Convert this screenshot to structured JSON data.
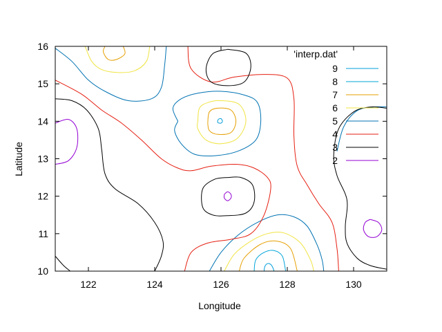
{
  "chart_data": {
    "type": "contour",
    "title": "",
    "xlabel": "Longitude",
    "ylabel": "Latitude",
    "xlim": [
      121,
      131
    ],
    "ylim": [
      10,
      16
    ],
    "xticks": [
      "122",
      "124",
      "126",
      "128",
      "130"
    ],
    "yticks": [
      "10",
      "11",
      "12",
      "13",
      "14",
      "15",
      "16"
    ],
    "legend_title": "'interp.dat'",
    "legend_position": "top-right",
    "grid": false,
    "series": [
      {
        "name": "9",
        "level": 9,
        "color": "#009dd9",
        "paths": [
          [
            [
              127.3,
              10.0
            ],
            [
              127.32,
              10.12
            ],
            [
              127.4,
              10.2
            ],
            [
              127.5,
              10.18
            ],
            [
              127.56,
              10.1
            ],
            [
              127.6,
              10.0
            ]
          ],
          [
            [
              126.05,
              14.0
            ],
            [
              126.0,
              13.95
            ],
            [
              125.9,
              13.97
            ],
            [
              125.92,
              14.05
            ],
            [
              126.0,
              14.07
            ],
            [
              126.05,
              14.0
            ]
          ]
        ]
      },
      {
        "name": "8",
        "level": 8,
        "color": "#00a4d8",
        "paths": [
          [
            [
              127.0,
              10.0
            ],
            [
              127.05,
              10.3
            ],
            [
              127.3,
              10.5
            ],
            [
              127.6,
              10.55
            ],
            [
              127.85,
              10.4
            ],
            [
              127.95,
              10.0
            ]
          ]
        ]
      },
      {
        "name": "7",
        "level": 7,
        "color": "#e69f00",
        "paths": [
          [
            [
              126.55,
              10.0
            ],
            [
              126.7,
              10.35
            ],
            [
              127.2,
              10.72
            ],
            [
              127.7,
              10.8
            ],
            [
              128.1,
              10.6
            ],
            [
              128.3,
              10.0
            ]
          ],
          [
            [
              125.6,
              13.95
            ],
            [
              125.65,
              14.25
            ],
            [
              125.9,
              14.35
            ],
            [
              126.3,
              14.3
            ],
            [
              126.45,
              14.0
            ],
            [
              126.3,
              13.7
            ],
            [
              125.9,
              13.65
            ],
            [
              125.65,
              13.75
            ],
            [
              125.6,
              13.95
            ]
          ],
          [
            [
              122.5,
              16.0
            ],
            [
              122.45,
              15.85
            ],
            [
              122.6,
              15.65
            ],
            [
              122.85,
              15.65
            ],
            [
              123.1,
              15.8
            ],
            [
              123.05,
              16.0
            ]
          ]
        ]
      },
      {
        "name": "6",
        "level": 6,
        "color": "#f0e442",
        "paths": [
          [
            [
              126.1,
              10.0
            ],
            [
              126.4,
              10.45
            ],
            [
              126.9,
              10.8
            ],
            [
              127.4,
              11.0
            ],
            [
              127.9,
              11.02
            ],
            [
              128.4,
              10.75
            ],
            [
              128.7,
              10.3
            ],
            [
              128.8,
              10.0
            ]
          ],
          [
            [
              125.3,
              14.0
            ],
            [
              125.35,
              14.35
            ],
            [
              125.6,
              14.5
            ],
            [
              126.0,
              14.55
            ],
            [
              126.55,
              14.45
            ],
            [
              126.75,
              14.0
            ],
            [
              126.5,
              13.55
            ],
            [
              126.0,
              13.4
            ],
            [
              125.55,
              13.5
            ],
            [
              125.3,
              13.8
            ],
            [
              125.3,
              14.0
            ]
          ],
          [
            [
              121.9,
              16.0
            ],
            [
              122.1,
              15.6
            ],
            [
              122.4,
              15.38
            ],
            [
              122.9,
              15.3
            ],
            [
              123.4,
              15.35
            ],
            [
              123.75,
              15.6
            ],
            [
              123.85,
              16.0
            ]
          ]
        ]
      },
      {
        "name": "5",
        "level": 5,
        "color": "#0072b2",
        "paths": [
          [
            [
              125.65,
              10.0
            ],
            [
              126.0,
              10.5
            ],
            [
              126.5,
              10.95
            ],
            [
              127.1,
              11.3
            ],
            [
              127.7,
              11.5
            ],
            [
              128.2,
              11.45
            ],
            [
              128.6,
              11.2
            ],
            [
              128.9,
              10.7
            ],
            [
              129.05,
              10.3
            ],
            [
              129.1,
              10.0
            ]
          ],
          [
            [
              124.7,
              14.0
            ],
            [
              124.55,
              14.35
            ],
            [
              124.8,
              14.6
            ],
            [
              125.3,
              14.75
            ],
            [
              126.0,
              14.8
            ],
            [
              126.7,
              14.7
            ],
            [
              127.1,
              14.5
            ],
            [
              127.2,
              14.0
            ],
            [
              127.05,
              13.5
            ],
            [
              126.5,
              13.2
            ],
            [
              125.8,
              13.08
            ],
            [
              125.2,
              13.12
            ],
            [
              124.8,
              13.4
            ],
            [
              124.6,
              13.75
            ],
            [
              124.7,
              14.0
            ]
          ],
          [
            [
              121.0,
              15.95
            ],
            [
              121.5,
              15.6
            ],
            [
              122.0,
              15.1
            ],
            [
              122.5,
              14.8
            ],
            [
              123.2,
              14.55
            ],
            [
              123.9,
              14.6
            ],
            [
              124.2,
              14.9
            ],
            [
              124.3,
              15.5
            ],
            [
              124.35,
              16.0
            ]
          ],
          [
            [
              129.5,
              13.2
            ],
            [
              129.7,
              13.85
            ],
            [
              130.1,
              14.28
            ],
            [
              130.6,
              14.38
            ],
            [
              131.0,
              14.38
            ]
          ]
        ]
      },
      {
        "name": "4",
        "level": 4,
        "color": "#e51e10",
        "paths": [
          [
            [
              124.9,
              10.0
            ],
            [
              125.1,
              10.5
            ],
            [
              125.6,
              10.75
            ],
            [
              126.3,
              10.85
            ],
            [
              126.9,
              11.0
            ],
            [
              127.3,
              11.5
            ],
            [
              127.5,
              12.2
            ],
            [
              127.4,
              12.5
            ],
            [
              127.0,
              12.75
            ],
            [
              126.5,
              12.85
            ],
            [
              125.7,
              12.8
            ],
            [
              125.1,
              12.68
            ],
            [
              124.7,
              12.75
            ],
            [
              124.2,
              13.0
            ],
            [
              123.6,
              13.5
            ],
            [
              123.0,
              13.95
            ],
            [
              122.4,
              14.3
            ],
            [
              121.8,
              14.72
            ],
            [
              121.0,
              15.1
            ]
          ],
          [
            [
              125.0,
              16.0
            ],
            [
              125.1,
              15.4
            ],
            [
              125.7,
              15.05
            ],
            [
              126.4,
              15.18
            ],
            [
              127.3,
              15.25
            ],
            [
              128.0,
              15.15
            ],
            [
              128.2,
              14.6
            ],
            [
              128.2,
              13.6
            ],
            [
              128.3,
              12.8
            ],
            [
              128.6,
              12.3
            ],
            [
              128.95,
              11.8
            ],
            [
              129.35,
              11.3
            ],
            [
              129.5,
              10.6
            ],
            [
              129.55,
              10.0
            ]
          ]
        ]
      },
      {
        "name": "3",
        "level": 3,
        "color": "#000000",
        "paths": [
          [
            [
              121.0,
              14.6
            ],
            [
              121.5,
              14.55
            ],
            [
              121.95,
              14.3
            ],
            [
              122.3,
              13.8
            ],
            [
              122.4,
              13.25
            ],
            [
              122.5,
              12.6
            ],
            [
              122.8,
              12.2
            ],
            [
              123.5,
              11.8
            ],
            [
              124.0,
              11.3
            ],
            [
              124.25,
              10.8
            ],
            [
              124.2,
              10.4
            ],
            [
              124.0,
              10.0
            ]
          ],
          [
            [
              121.0,
              10.4
            ],
            [
              121.25,
              10.15
            ],
            [
              121.45,
              10.0
            ]
          ],
          [
            [
              126.2,
              12.5
            ],
            [
              125.8,
              12.45
            ],
            [
              125.45,
              12.2
            ],
            [
              125.45,
              11.7
            ],
            [
              125.75,
              11.5
            ],
            [
              126.2,
              11.48
            ],
            [
              126.75,
              11.55
            ],
            [
              127.0,
              11.85
            ],
            [
              126.95,
              12.3
            ],
            [
              126.6,
              12.5
            ],
            [
              126.2,
              12.5
            ]
          ],
          [
            [
              126.2,
              15.92
            ],
            [
              125.75,
              15.8
            ],
            [
              125.55,
              15.4
            ],
            [
              125.7,
              15.05
            ],
            [
              126.2,
              14.95
            ],
            [
              126.7,
              15.05
            ],
            [
              126.9,
              15.45
            ],
            [
              126.75,
              15.82
            ],
            [
              126.2,
              15.92
            ]
          ],
          [
            [
              131.0,
              14.35
            ],
            [
              130.5,
              14.38
            ],
            [
              130.0,
              14.25
            ],
            [
              129.55,
              13.8
            ],
            [
              129.4,
              13.1
            ],
            [
              129.5,
              12.55
            ],
            [
              129.8,
              11.9
            ],
            [
              129.75,
              11.2
            ],
            [
              129.8,
              10.75
            ],
            [
              130.1,
              10.35
            ],
            [
              130.5,
              10.15
            ],
            [
              131.0,
              10.05
            ]
          ]
        ]
      },
      {
        "name": "2",
        "level": 2,
        "color": "#9400d3",
        "paths": [
          [
            [
              121.0,
              13.95
            ],
            [
              121.4,
              14.05
            ],
            [
              121.65,
              13.8
            ],
            [
              121.65,
              13.3
            ],
            [
              121.4,
              12.95
            ],
            [
              121.0,
              12.85
            ]
          ],
          [
            [
              126.1,
              12.05
            ],
            [
              126.2,
              12.12
            ],
            [
              126.3,
              12.05
            ],
            [
              126.3,
              11.95
            ],
            [
              126.2,
              11.88
            ],
            [
              126.1,
              11.95
            ],
            [
              126.1,
              12.05
            ]
          ],
          [
            [
              130.5,
              11.38
            ],
            [
              130.75,
              11.3
            ],
            [
              130.85,
              11.1
            ],
            [
              130.7,
              10.92
            ],
            [
              130.45,
              10.92
            ],
            [
              130.3,
              11.1
            ],
            [
              130.35,
              11.3
            ],
            [
              130.5,
              11.38
            ]
          ]
        ]
      }
    ]
  }
}
